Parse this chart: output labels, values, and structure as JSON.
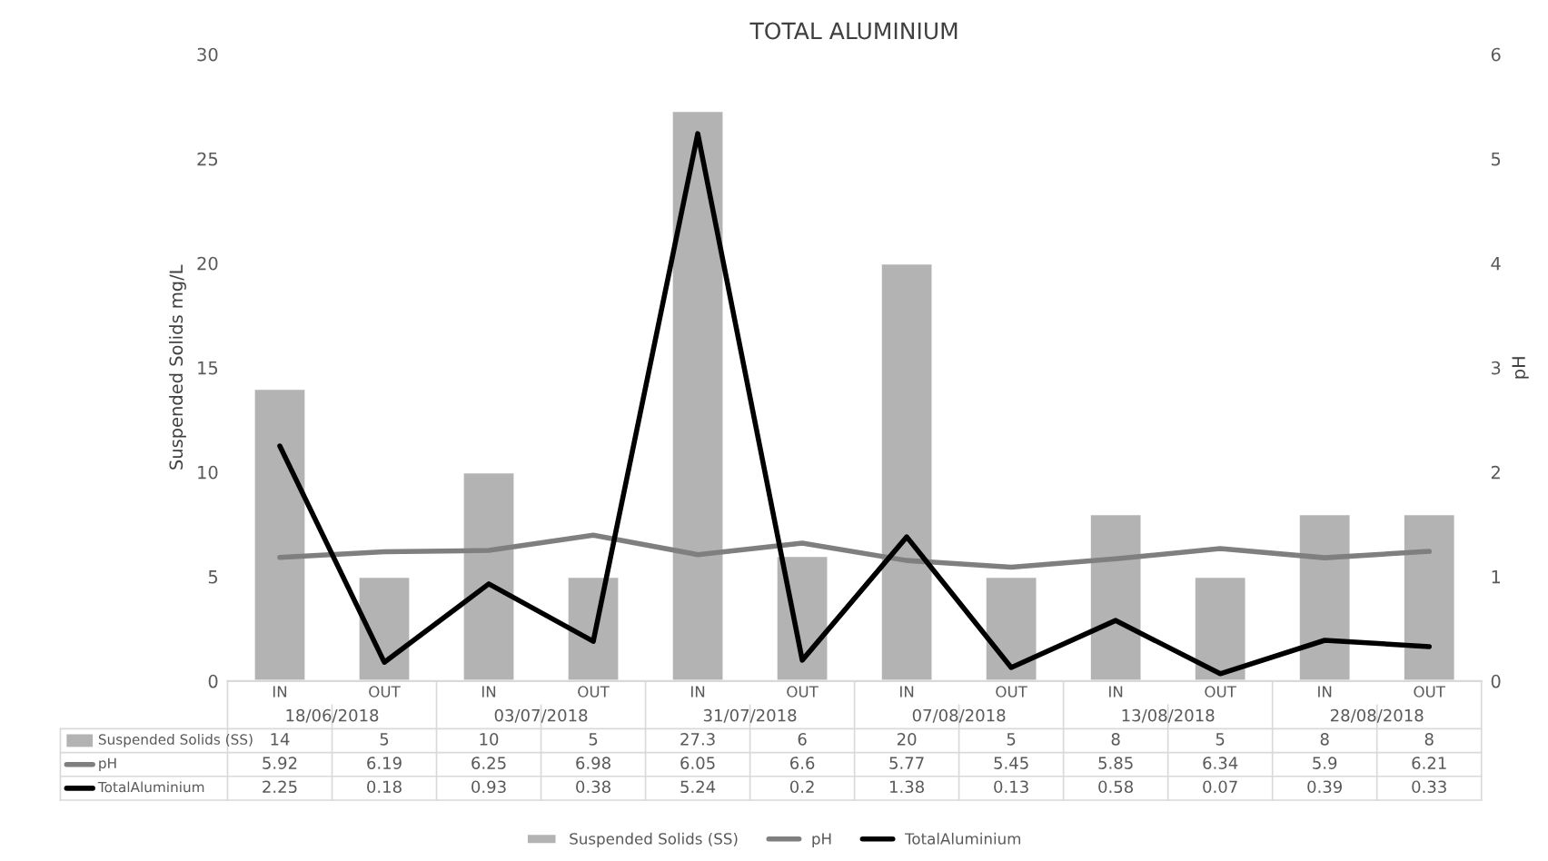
{
  "chart_data": {
    "type": "bar",
    "title": "TOTAL ALUMINIUM",
    "ylabel": "Suspended Solids mg/L",
    "y2label": "pH",
    "categories": [
      "IN",
      "OUT",
      "IN",
      "OUT",
      "IN",
      "OUT",
      "IN",
      "OUT",
      "IN",
      "OUT",
      "IN",
      "OUT"
    ],
    "annotations": [
      "18/06/2018",
      "03/07/2018",
      "31/07/2018",
      "07/08/2018",
      "13/08/2018",
      "28/08/2018"
    ],
    "series": [
      {
        "name": "Suspended Solids (SS)",
        "type": "bar",
        "color": "#b3b3b3",
        "values": [
          14,
          5,
          10,
          5,
          27.3,
          6,
          20,
          5,
          8,
          5,
          8,
          8
        ]
      },
      {
        "name": "pH",
        "type": "line",
        "color": "#7f7f7f",
        "values": [
          5.92,
          6.19,
          6.25,
          6.98,
          6.05,
          6.6,
          5.77,
          5.45,
          5.85,
          6.34,
          5.9,
          6.21
        ]
      },
      {
        "name": "TotalAluminium",
        "type": "line",
        "axis": "y2",
        "color": "#000000",
        "values": [
          2.25,
          0.18,
          0.93,
          0.38,
          5.24,
          0.2,
          1.38,
          0.13,
          0.58,
          0.07,
          0.39,
          0.33
        ]
      }
    ],
    "ylim": [
      0,
      30
    ],
    "yticks": [
      0,
      5,
      10,
      15,
      20,
      25,
      30
    ],
    "y2lim": [
      0,
      6
    ],
    "y2ticks": [
      0,
      1,
      2,
      3,
      4,
      5,
      6
    ],
    "data_labels": true,
    "legend": "bottom",
    "grid": false
  }
}
